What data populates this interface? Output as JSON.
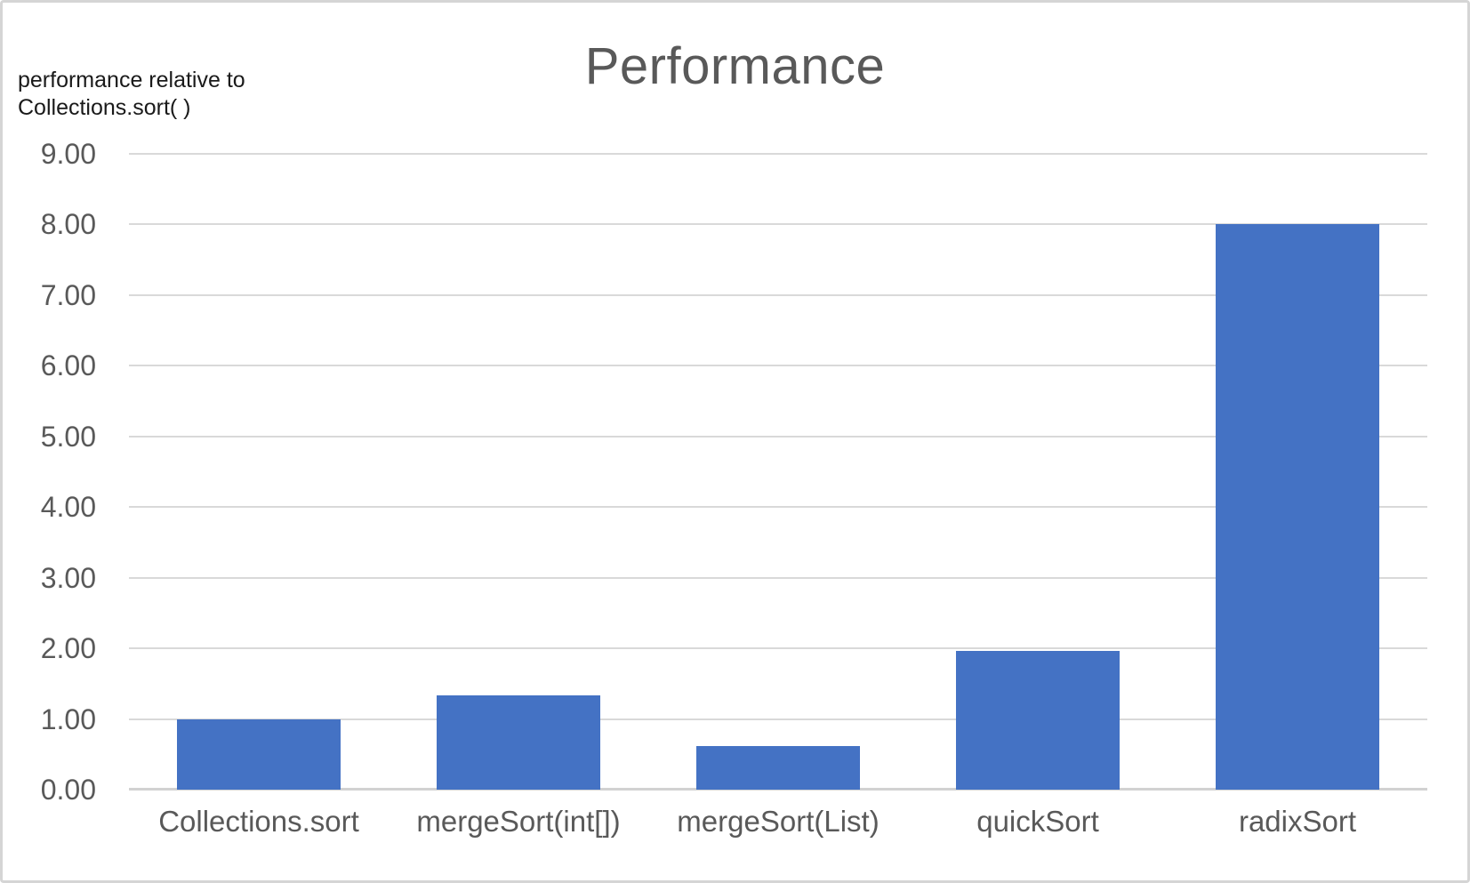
{
  "chart_data": {
    "type": "bar",
    "title": "Performance",
    "y_axis_title_lines": [
      "performance relative to",
      "Collections.sort( )"
    ],
    "categories": [
      "Collections.sort",
      "mergeSort(int[])",
      "mergeSort(List)",
      "quickSort",
      "radixSort"
    ],
    "values": [
      1.0,
      1.33,
      0.62,
      1.96,
      8.0
    ],
    "xlabel": "",
    "ylabel": "performance relative to Collections.sort( )",
    "ylim": [
      0,
      9
    ],
    "y_tick_step": 1,
    "y_tick_decimals": 2,
    "grid": "horizontal",
    "legend_position": "none",
    "colors": {
      "bar": "#4472c4",
      "gridline": "#d9d9d9",
      "axis_baseline": "#d2d2d2",
      "title_text": "#595959",
      "tick_label_text": "#595959",
      "category_label_text": "#595959",
      "axis_title_text": "#1a1a1a",
      "background": "#ffffff",
      "frame_border": "#d5d5d5"
    }
  }
}
